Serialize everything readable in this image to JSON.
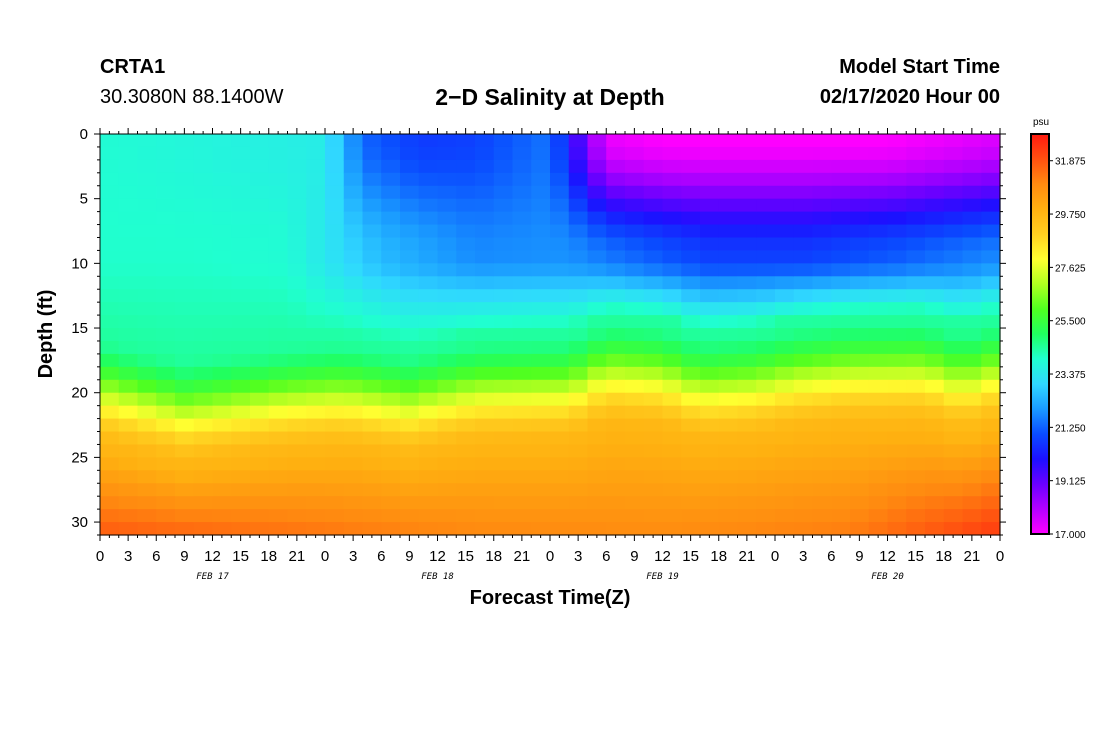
{
  "header": {
    "station": "CRTA1",
    "coords": "30.3080N 88.1400W",
    "title": "2−D Salinity at Depth",
    "model_label": "Model Start Time",
    "model_time": "02/17/2020 Hour 00"
  },
  "chart_data": {
    "type": "heatmap",
    "title": "2−D Salinity at Depth",
    "xlabel": "Forecast Time(Z)",
    "ylabel": "Depth (ft)",
    "x_range_hours": [
      0,
      96
    ],
    "y_range_ft": [
      0,
      31
    ],
    "y_ticks": [
      0,
      5,
      10,
      15,
      20,
      25,
      30
    ],
    "x_tick_labels": [
      "0",
      "3",
      "6",
      "9",
      "12",
      "15",
      "18",
      "21",
      "0",
      "3",
      "6",
      "9",
      "12",
      "15",
      "18",
      "21",
      "0",
      "3",
      "6",
      "9",
      "12",
      "15",
      "18",
      "21",
      "0",
      "3",
      "6",
      "9",
      "12",
      "15",
      "18",
      "21",
      "0"
    ],
    "day_labels": [
      {
        "label": "FEB 17",
        "hour": 12
      },
      {
        "label": "FEB 18",
        "hour": 36
      },
      {
        "label": "FEB 19",
        "hour": 60
      },
      {
        "label": "FEB 20",
        "hour": 84
      }
    ],
    "colorbar": {
      "unit": "psu",
      "min": 17.0,
      "max": 32.94,
      "tick_labels": [
        "31.875",
        "29.750",
        "27.625",
        "25.500",
        "23.375",
        "21.250",
        "19.125",
        "17.000"
      ],
      "colors": [
        "#ff00ff",
        "#b400ff",
        "#6a00ff",
        "#1c10ff",
        "#0a4cff",
        "#1a9aff",
        "#30d8ff",
        "#20ffd0",
        "#20ff60",
        "#50ff20",
        "#b0ff20",
        "#ffff30",
        "#ffd020",
        "#ffb010",
        "#ff8a10",
        "#ff5010",
        "#ff1a10"
      ]
    },
    "grid": {
      "time_step_hours": 2,
      "depth_rows": 31,
      "surface_profile_hours": [
        0,
        12,
        24,
        28,
        34,
        40,
        48,
        54,
        60,
        72,
        84,
        96
      ],
      "surface_profile_psu": [
        23.9,
        23.7,
        23.5,
        21.3,
        20.7,
        20.8,
        21.5,
        17.3,
        17.0,
        17.0,
        17.0,
        17.5
      ],
      "mid_profile_hours": [
        0,
        10,
        20,
        30,
        40,
        50,
        55,
        65,
        75,
        85,
        96
      ],
      "mid_profile_psu": [
        24.0,
        24.0,
        23.9,
        22.5,
        21.8,
        21.9,
        21.5,
        20.8,
        20.8,
        21.2,
        21.8
      ],
      "cline_profile_hours": [
        0,
        9,
        20,
        26,
        33,
        40,
        50,
        54,
        60,
        64,
        70,
        74,
        80,
        88,
        92,
        96
      ],
      "cline_profile_ft": [
        18.5,
        20.0,
        19.0,
        18.7,
        19.4,
        18.4,
        18.2,
        16.9,
        17.2,
        18.2,
        17.9,
        17.3,
        16.9,
        16.8,
        17.7,
        16.8
      ],
      "bottom_profile_hours": [
        0,
        20,
        40,
        60,
        80,
        96
      ],
      "bottom_profile_psu": [
        31.8,
        31.4,
        31.0,
        30.9,
        31.2,
        32.4
      ]
    }
  }
}
